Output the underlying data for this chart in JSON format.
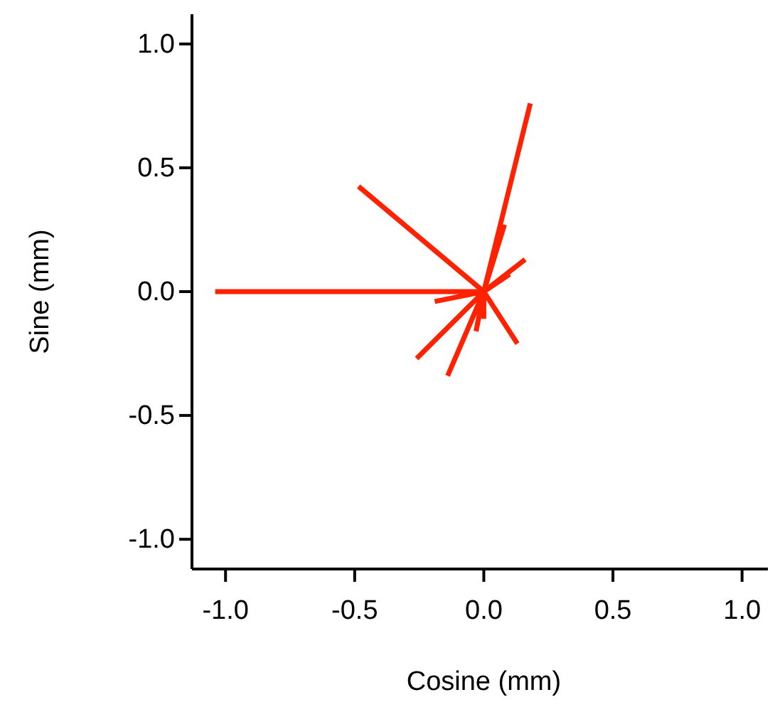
{
  "chart_data": {
    "type": "line",
    "xlabel": "Cosine (mm)",
    "ylabel": "Sine (mm)",
    "xlim": [
      -1.13,
      1.1
    ],
    "ylim": [
      -1.12,
      1.12
    ],
    "xticks": [
      {
        "value": -1,
        "label": "-1.0"
      },
      {
        "value": -0.5,
        "label": "-0.5"
      },
      {
        "value": 0,
        "label": "0.0"
      },
      {
        "value": 0.5,
        "label": "0.5"
      },
      {
        "value": 1,
        "label": "1.0"
      }
    ],
    "yticks": [
      {
        "value": -1,
        "label": "-1.0"
      },
      {
        "value": -0.5,
        "label": "-0.5"
      },
      {
        "value": 0,
        "label": "0.0"
      },
      {
        "value": 0.5,
        "label": "0.5"
      },
      {
        "value": 1,
        "label": "1.0"
      }
    ],
    "grid": false,
    "marker": "none",
    "line_style": "solid",
    "series": [
      {
        "color": "#ff2200",
        "x": [
          0,
          -1.04,
          null,
          0,
          -0.485,
          null,
          0,
          0.18,
          null,
          0,
          0.08,
          null,
          0,
          0.16,
          null,
          0,
          0.1,
          null,
          0,
          -0.19,
          null,
          0,
          -0.26,
          null,
          0,
          -0.14,
          null,
          0,
          0.13,
          null,
          0,
          -0.03,
          null,
          0,
          0
        ],
        "values": [
          0,
          0,
          null,
          0,
          0.425,
          null,
          0,
          0.76,
          null,
          0,
          0.27,
          null,
          0,
          0.13,
          null,
          0,
          0.07,
          null,
          0,
          -0.04,
          null,
          0,
          -0.27,
          null,
          0,
          -0.34,
          null,
          0,
          -0.21,
          null,
          0,
          -0.16,
          null,
          0,
          -0.11
        ]
      }
    ]
  }
}
